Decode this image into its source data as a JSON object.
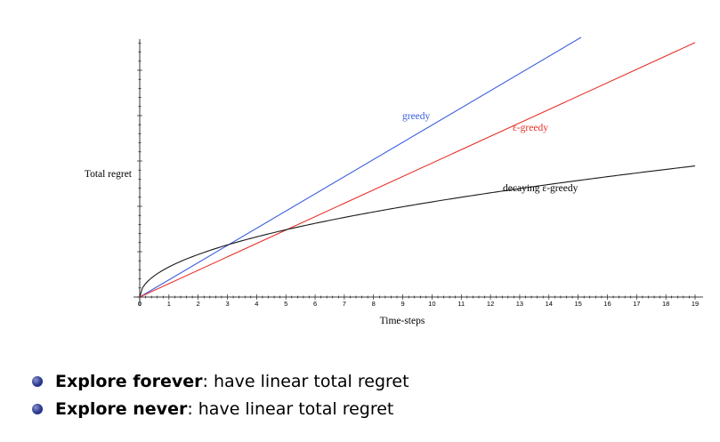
{
  "chart_data": {
    "type": "line",
    "xlabel": "Time-steps",
    "ylabel": "Total regret",
    "xlim": [
      0,
      19
    ],
    "x_ticks": [
      "0",
      "1",
      "2",
      "3",
      "4",
      "5",
      "6",
      "7",
      "8",
      "9",
      "10",
      "11",
      "12",
      "13",
      "14",
      "15",
      "16",
      "17",
      "18",
      "19"
    ],
    "grid": false,
    "series": [
      {
        "name": "greedy",
        "color": "#3a5ee0",
        "shape": "linear",
        "x": [
          0,
          15.1
        ],
        "y": [
          0,
          1.0
        ]
      },
      {
        "name": "ε-greedy",
        "color": "#e8302a",
        "shape": "linear",
        "x": [
          0,
          19
        ],
        "y": [
          0,
          0.98
        ]
      },
      {
        "name": "decaying ε-greedy",
        "color": "#1a1a1a",
        "shape": "sqrt",
        "x": [
          0,
          19
        ],
        "y": [
          0,
          0.505
        ]
      }
    ]
  },
  "bullets": [
    {
      "bold": "Explore forever",
      "rest": ": have linear total regret"
    },
    {
      "bold": "Explore never",
      "rest": ": have linear total regret"
    }
  ],
  "colors": {
    "bullet": "#2a3890"
  }
}
